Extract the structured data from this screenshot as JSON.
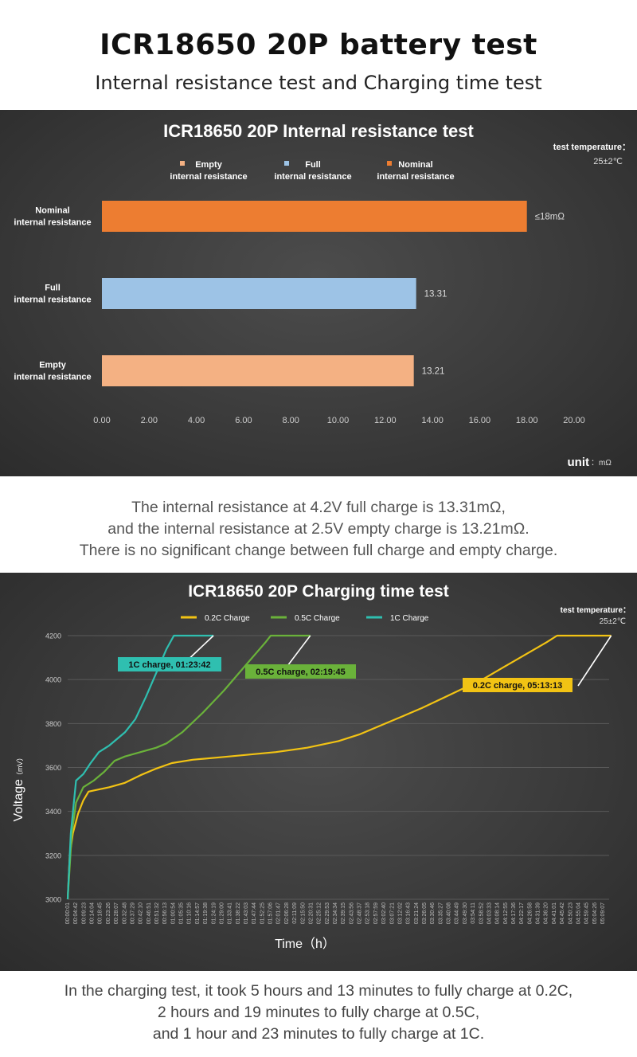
{
  "header": {
    "title": "ICR18650 20P battery test",
    "subtitle": "Internal resistance test and Charging time test"
  },
  "chart_data": [
    {
      "type": "bar",
      "orientation": "horizontal",
      "title": "ICR18650 20P Internal resistance test",
      "categories": [
        "Nominal internal resistance",
        "Full internal resistance",
        "Empty internal resistance"
      ],
      "category_lines": [
        [
          "Nominal",
          "internal resistance"
        ],
        [
          "Full",
          "internal resistance"
        ],
        [
          "Empty",
          "internal resistance"
        ]
      ],
      "values": [
        18,
        13.31,
        13.21
      ],
      "value_labels": [
        "≤18mΩ",
        "13.31",
        "13.21"
      ],
      "colors": [
        "#ed7d31",
        "#9dc3e6",
        "#f4b183"
      ],
      "legend": [
        {
          "line1": "Empty",
          "line2": "internal resistance",
          "color": "#f4b183"
        },
        {
          "line1": "Full",
          "line2": "internal resistance",
          "color": "#9dc3e6"
        },
        {
          "line1": "Nominal",
          "line2": "internal resistance",
          "color": "#ed7d31"
        }
      ],
      "xticks": [
        "0.00",
        "2.00",
        "4.00",
        "6.00",
        "8.00",
        "10.00",
        "12.00",
        "14.00",
        "16.00",
        "18.00",
        "20.00"
      ],
      "xlim": [
        0,
        20
      ],
      "unit_label": "unit",
      "unit_value": "：mΩ",
      "temp_label": "test temperature：",
      "temp_value": "25±2℃",
      "legend_position": "top",
      "grid": false
    },
    {
      "type": "line",
      "title": "ICR18650 20P Charging time test",
      "xlabel": "Time（h）",
      "ylabel_main": "Voltage",
      "ylabel_unit": "（mV）",
      "ylim": [
        3000,
        4200
      ],
      "yticks": [
        "3000",
        "3200",
        "3400",
        "3600",
        "3800",
        "4000",
        "4200"
      ],
      "xlim": [
        0,
        5.2
      ],
      "xticks": [
        "00:00:01",
        "00:04:42",
        "00:09:23",
        "00:14:04",
        "00:18:45",
        "00:23:26",
        "00:28:07",
        "00:32:48",
        "00:37:29",
        "00:42:10",
        "00:46:51",
        "00:51:32",
        "00:56:13",
        "01:00:54",
        "01:05:35",
        "01:10:16",
        "01:14:57",
        "01:19:38",
        "01:24:19",
        "01:29:00",
        "01:33:41",
        "01:38:22",
        "01:43:03",
        "01:47:44",
        "01:52:25",
        "01:57:06",
        "02:01:47",
        "02:06:28",
        "02:11:09",
        "02:15:50",
        "02:20:31",
        "02:25:12",
        "02:29:53",
        "02:34:34",
        "02:39:15",
        "02:43:56",
        "02:48:37",
        "02:53:18",
        "02:57:59",
        "03:02:40",
        "03:07:21",
        "03:12:02",
        "03:16:43",
        "03:21:24",
        "03:26:05",
        "03:30:46",
        "03:35:27",
        "03:40:08",
        "03:44:49",
        "03:49:30",
        "03:54:11",
        "03:58:52",
        "04:03:33",
        "04:08:14",
        "04:12:55",
        "04:17:36",
        "04:22:17",
        "04:26:58",
        "04:31:39",
        "04:36:20",
        "04:41:01",
        "04:45:42",
        "04:50:23",
        "04:55:04",
        "04:59:45",
        "05:04:26",
        "05:09:07"
      ],
      "temp_label": "test temperature：",
      "temp_value": "25±2℃",
      "legend_position": "top",
      "grid": true,
      "series": [
        {
          "name": "0.2C Charge",
          "color": "#f2c314",
          "annotation": "0.2C charge, 05:13:13",
          "points": [
            [
              0,
              3000
            ],
            [
              0.02,
              3200
            ],
            [
              0.05,
              3300
            ],
            [
              0.1,
              3390
            ],
            [
              0.15,
              3450
            ],
            [
              0.2,
              3490
            ],
            [
              0.3,
              3500
            ],
            [
              0.4,
              3510
            ],
            [
              0.55,
              3530
            ],
            [
              0.7,
              3565
            ],
            [
              0.85,
              3595
            ],
            [
              1.0,
              3620
            ],
            [
              1.2,
              3635
            ],
            [
              1.5,
              3648
            ],
            [
              2.0,
              3670
            ],
            [
              2.3,
              3690
            ],
            [
              2.6,
              3720
            ],
            [
              2.8,
              3750
            ],
            [
              3.0,
              3790
            ],
            [
              3.2,
              3830
            ],
            [
              3.4,
              3870
            ],
            [
              3.6,
              3915
            ],
            [
              3.8,
              3960
            ],
            [
              4.0,
              4005
            ],
            [
              4.2,
              4060
            ],
            [
              4.4,
              4115
            ],
            [
              4.6,
              4170
            ],
            [
              4.7,
              4200
            ],
            [
              5.22,
              4200
            ]
          ]
        },
        {
          "name": "0.5C Charge",
          "color": "#6ab23a",
          "annotation": "0.5C charge, 02:19:45",
          "points": [
            [
              0,
              3000
            ],
            [
              0.04,
              3300
            ],
            [
              0.08,
              3440
            ],
            [
              0.15,
              3510
            ],
            [
              0.25,
              3540
            ],
            [
              0.35,
              3580
            ],
            [
              0.45,
              3630
            ],
            [
              0.55,
              3650
            ],
            [
              0.7,
              3670
            ],
            [
              0.85,
              3690
            ],
            [
              0.95,
              3710
            ],
            [
              1.1,
              3760
            ],
            [
              1.3,
              3850
            ],
            [
              1.5,
              3950
            ],
            [
              1.7,
              4060
            ],
            [
              1.9,
              4170
            ],
            [
              1.95,
              4200
            ],
            [
              2.33,
              4200
            ]
          ]
        },
        {
          "name": "1C Charge",
          "color": "#2fbfb0",
          "annotation": "1C charge, 01:23:42",
          "points": [
            [
              0,
              3000
            ],
            [
              0.03,
              3300
            ],
            [
              0.08,
              3540
            ],
            [
              0.15,
              3570
            ],
            [
              0.22,
              3620
            ],
            [
              0.3,
              3670
            ],
            [
              0.4,
              3700
            ],
            [
              0.55,
              3760
            ],
            [
              0.65,
              3820
            ],
            [
              0.75,
              3920
            ],
            [
              0.85,
              4030
            ],
            [
              0.95,
              4140
            ],
            [
              1.02,
              4200
            ],
            [
              1.4,
              4200
            ]
          ]
        }
      ]
    }
  ],
  "descriptions": {
    "resistance": [
      "The internal resistance at 4.2V full charge is 13.31mΩ,",
      "and the internal resistance at 2.5V empty charge is 13.21mΩ.",
      "There is no significant change between full charge and empty charge."
    ],
    "charging": [
      "In the charging test, it took 5 hours and 13 minutes to fully charge at 0.2C,",
      "2 hours and 19 minutes to fully charge at 0.5C,",
      "and 1 hour and 23 minutes to fully charge at 1C."
    ]
  }
}
